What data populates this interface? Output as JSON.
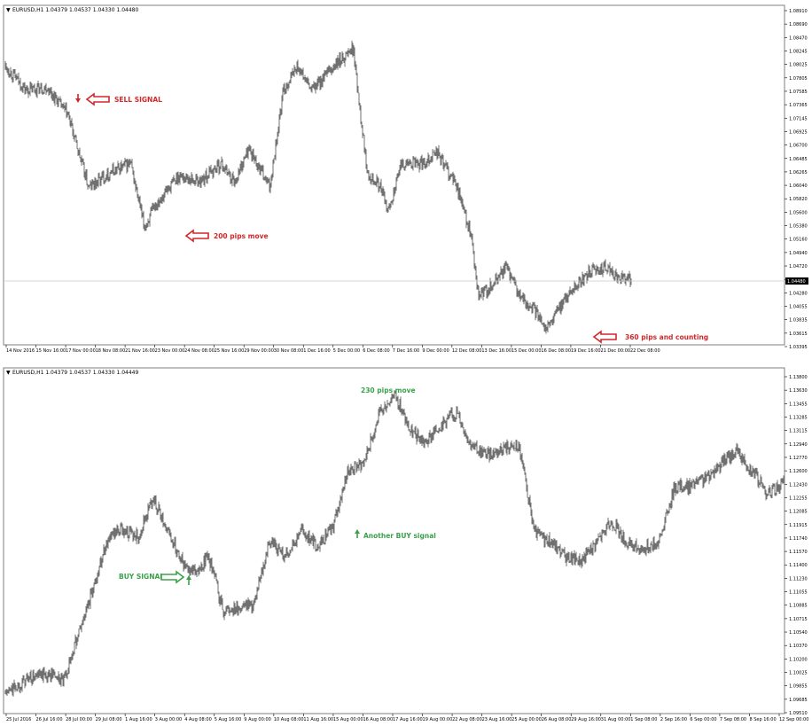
{
  "chart_data": [
    {
      "type": "line",
      "style": "ohlc-bars",
      "title": "EURUSD,H1  1.04379 1.04537 1.04330 1.04480",
      "current_price": "1.04480",
      "ylim": [
        1.03395,
        1.0891
      ],
      "y_ticks": [
        "1.08910",
        "1.08690",
        "1.08470",
        "1.08245",
        "1.08025",
        "1.07805",
        "1.07585",
        "1.07365",
        "1.07145",
        "1.06925",
        "1.06700",
        "1.06485",
        "1.06265",
        "1.06040",
        "1.05820",
        "1.05600",
        "1.05380",
        "1.05160",
        "1.04940",
        "1.04720",
        "1.04500",
        "1.04280",
        "1.04055",
        "1.03835",
        "1.03615",
        "1.03395"
      ],
      "x_ticks": [
        "14 Nov 2016",
        "15 Nov 16:00",
        "17 Nov 00:00",
        "18 Nov 08:00",
        "21 Nov 16:00",
        "23 Nov 00:00",
        "24 Nov 08:00",
        "25 Nov 16:00",
        "29 Nov 00:00",
        "30 Nov 08:00",
        "1 Dec 16:00",
        "5 Dec 00:00",
        "6 Dec 08:00",
        "7 Dec 16:00",
        "9 Dec 00:00",
        "12 Dec 08:00",
        "13 Dec 16:00",
        "15 Dec 00:00",
        "16 Dec 08:00",
        "19 Dec 16:00",
        "21 Dec 00:00",
        "22 Dec 08:00"
      ],
      "x": [
        0,
        0.03,
        0.06,
        0.09,
        0.12,
        0.15,
        0.18,
        0.2,
        0.22,
        0.25,
        0.28,
        0.31,
        0.33,
        0.35,
        0.38,
        0.4,
        0.42,
        0.44,
        0.47,
        0.5,
        0.52,
        0.54,
        0.55,
        0.57,
        0.6,
        0.62,
        0.65,
        0.67,
        0.68,
        0.7,
        0.72,
        0.74,
        0.76,
        0.78,
        0.8,
        0.82,
        0.84,
        0.86,
        0.88,
        0.9
      ],
      "values": [
        1.08,
        1.076,
        1.0765,
        1.072,
        1.06,
        1.0625,
        1.064,
        1.0535,
        1.058,
        1.062,
        1.061,
        1.064,
        1.061,
        1.0665,
        1.06,
        1.076,
        1.08,
        1.076,
        1.0795,
        1.083,
        1.063,
        1.06,
        1.056,
        1.064,
        1.064,
        1.066,
        1.06,
        1.052,
        1.042,
        1.044,
        1.047,
        1.042,
        1.04,
        1.037,
        1.041,
        1.044,
        1.046,
        1.047,
        1.0455,
        1.0448
      ],
      "annotations": [
        {
          "text": "SELL SIGNAL",
          "color": "#d3272a"
        },
        {
          "text": "200 pips move",
          "color": "#d3272a"
        },
        {
          "text": "360 pips and counting",
          "color": "#d3272a"
        }
      ]
    },
    {
      "type": "line",
      "style": "ohlc-bars",
      "title": "EURUSD,H1  1.04379 1.04537 1.04330 1.04449",
      "ylim": [
        1.0951,
        1.138
      ],
      "y_ticks": [
        "1.13800",
        "1.13630",
        "1.13455",
        "1.13285",
        "1.13115",
        "1.12940",
        "1.12770",
        "1.12600",
        "1.12430",
        "1.12255",
        "1.12085",
        "1.11915",
        "1.11740",
        "1.11570",
        "1.11400",
        "1.11230",
        "1.11055",
        "1.10885",
        "1.10715",
        "1.10540",
        "1.10370",
        "1.10200",
        "1.10025",
        "1.09855",
        "1.09685",
        "1.09510"
      ],
      "x_ticks": [
        "25 Jul 2016",
        "26 Jul 16:00",
        "28 Jul 00:00",
        "29 Jul 08:00",
        "1 Aug 16:00",
        "3 Aug 00:00",
        "4 Aug 08:00",
        "5 Aug 16:00",
        "9 Aug 00:00",
        "10 Aug 08:00",
        "11 Aug 16:00",
        "15 Aug 00:00",
        "16 Aug 08:00",
        "17 Aug 16:00",
        "19 Aug 00:00",
        "22 Aug 08:00",
        "23 Aug 16:00",
        "25 Aug 00:00",
        "26 Aug 08:00",
        "29 Aug 16:00",
        "31 Aug 00:00",
        "1 Sep 08:00",
        "2 Sep 16:00",
        "6 Sep 00:00",
        "7 Sep 08:00",
        "8 Sep 16:00",
        "12 Sep 00:00"
      ],
      "x": [
        0,
        0.03,
        0.06,
        0.075,
        0.09,
        0.11,
        0.13,
        0.15,
        0.17,
        0.19,
        0.21,
        0.23,
        0.25,
        0.26,
        0.28,
        0.3,
        0.32,
        0.34,
        0.36,
        0.38,
        0.4,
        0.42,
        0.44,
        0.46,
        0.48,
        0.5,
        0.52,
        0.54,
        0.56,
        0.58,
        0.6,
        0.62,
        0.64,
        0.66,
        0.68,
        0.7,
        0.72,
        0.74,
        0.76,
        0.78,
        0.8,
        0.82,
        0.84,
        0.86,
        0.88,
        0.9,
        0.92,
        0.94,
        0.96,
        0.98,
        1.0
      ],
      "values": [
        1.0975,
        1.0995,
        1.1,
        1.099,
        1.104,
        1.11,
        1.117,
        1.1185,
        1.1175,
        1.1225,
        1.118,
        1.114,
        1.113,
        1.1155,
        1.108,
        1.1085,
        1.109,
        1.117,
        1.115,
        1.1185,
        1.1165,
        1.1185,
        1.126,
        1.127,
        1.133,
        1.136,
        1.131,
        1.1295,
        1.132,
        1.1335,
        1.129,
        1.128,
        1.129,
        1.129,
        1.118,
        1.117,
        1.115,
        1.1145,
        1.117,
        1.1195,
        1.1165,
        1.116,
        1.117,
        1.124,
        1.124,
        1.125,
        1.127,
        1.1285,
        1.126,
        1.123,
        1.1245
      ],
      "annotations": [
        {
          "text": "BUY SIGNAL",
          "color": "#3aa14b"
        },
        {
          "text": "Another BUY signal",
          "color": "#3aa14b"
        },
        {
          "text": "230 pips move",
          "color": "#3aa14b"
        }
      ]
    }
  ]
}
